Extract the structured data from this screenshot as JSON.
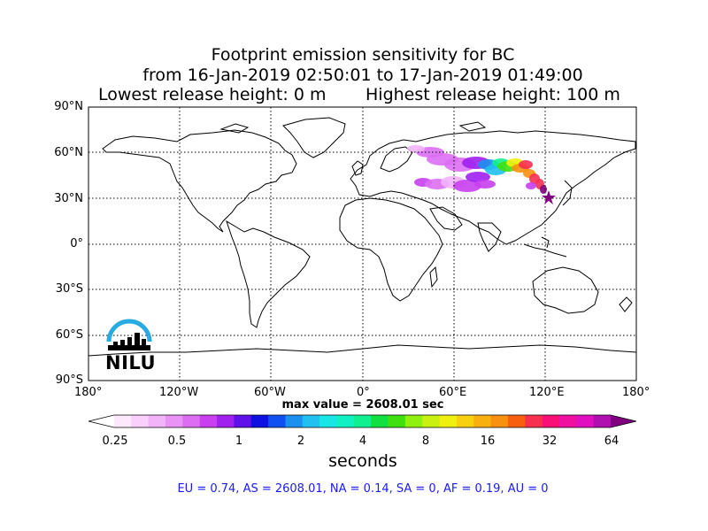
{
  "title": {
    "line1": "Footprint emission sensitivity for BC",
    "line2": "from 16-Jan-2019 02:50:01 to 17-Jan-2019 01:49:00",
    "lowest": "Lowest release height: 0 m",
    "highest": "Highest release height: 100 m"
  },
  "axes": {
    "lat_labels": [
      "90°N",
      "60°N",
      "30°N",
      "0°",
      "30°S",
      "60°S",
      "90°S"
    ],
    "lon_labels": [
      "180°",
      "120°W",
      "60°W",
      "0°",
      "60°E",
      "120°E",
      "180°"
    ],
    "grid": true,
    "grid_style": "dotted"
  },
  "max_value": "max value = 2608.01 sec",
  "colorbar": {
    "ticks": [
      "0.25",
      "0.5",
      "1",
      "2",
      "4",
      "8",
      "16",
      "32",
      "64"
    ],
    "unit": "seconds",
    "colors": [
      "#ffffff",
      "#fde8fd",
      "#f9d0fb",
      "#f2b4f8",
      "#e993f6",
      "#dd6ef4",
      "#c840f0",
      "#a020ee",
      "#6010e8",
      "#1010e0",
      "#1050f0",
      "#1c90f0",
      "#20c0f0",
      "#18e6e6",
      "#10f0c0",
      "#10f090",
      "#10e040",
      "#40e010",
      "#90f010",
      "#c8f010",
      "#f0f010",
      "#f8d010",
      "#f8b010",
      "#f89010",
      "#f86010",
      "#f83050",
      "#f81078",
      "#f010a0",
      "#e010c0",
      "#b010b0",
      "#800080"
    ],
    "extend": "both"
  },
  "stats": "EU = 0.74,  AS = 2608.01,  NA = 0.14,  SA = 0,  AF = 0.19,  AU = 0",
  "logo": {
    "text": "NILU",
    "arc_color": "#29aae1"
  },
  "plume_colors": [
    "#dd6ef4",
    "#c840f0",
    "#f2b4f8",
    "#a020ee",
    "#1c90f0",
    "#20c0f0",
    "#10f090",
    "#40e010",
    "#f0f010",
    "#f89010",
    "#f83050",
    "#800080"
  ]
}
